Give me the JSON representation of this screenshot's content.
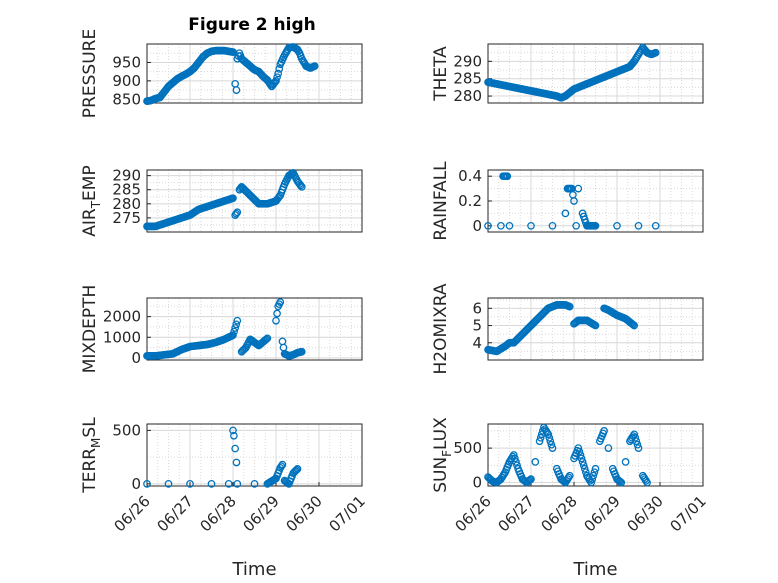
{
  "figure": {
    "title": "Figure 2 high"
  },
  "chart_data": [
    {
      "type": "scatter",
      "title": "Figure 2 high",
      "ylabel": "PRESSURE",
      "xlabel": "",
      "ylim": [
        840,
        1000
      ],
      "yticks": [
        850,
        900,
        950
      ],
      "xlim": [
        "06/26",
        "07/01"
      ],
      "grid": true,
      "series": [
        {
          "x": [
            0.0,
            0.1,
            0.2,
            0.3,
            0.4,
            0.5,
            0.6,
            0.7,
            0.8,
            0.9,
            1.0,
            1.1,
            1.2,
            1.3,
            1.4,
            1.5,
            1.6,
            1.7,
            1.8,
            1.9,
            2.0,
            2.05,
            2.08,
            2.1,
            2.15,
            2.2,
            2.3,
            2.4,
            2.5,
            2.6,
            2.7,
            2.8,
            2.9,
            3.0,
            3.05,
            3.1,
            3.2,
            3.3,
            3.4,
            3.5,
            3.55,
            3.6,
            3.7,
            3.8,
            3.9
          ],
          "y": [
            845,
            847,
            852,
            855,
            870,
            885,
            895,
            905,
            912,
            918,
            925,
            935,
            950,
            965,
            975,
            980,
            982,
            982,
            982,
            980,
            978,
            892,
            875,
            960,
            975,
            960,
            950,
            940,
            930,
            925,
            912,
            902,
            885,
            900,
            920,
            945,
            970,
            990,
            992,
            985,
            975,
            960,
            940,
            935,
            940
          ]
        }
      ]
    },
    {
      "type": "scatter",
      "ylabel": "THETA",
      "xlabel": "",
      "ylim": [
        278,
        295
      ],
      "yticks": [
        280,
        285,
        290
      ],
      "xlim": [
        "06/26",
        "07/01"
      ],
      "grid": true,
      "series": [
        {
          "x": [
            0.0,
            0.2,
            0.4,
            0.6,
            0.8,
            1.0,
            1.2,
            1.4,
            1.6,
            1.7,
            1.8,
            2.0,
            2.2,
            2.4,
            2.6,
            2.8,
            3.0,
            3.1,
            3.2,
            3.3,
            3.4,
            3.5,
            3.6,
            3.7,
            3.8,
            3.9
          ],
          "y": [
            284,
            283.5,
            283,
            282.5,
            282,
            281.5,
            281,
            280.5,
            280,
            279.5,
            280,
            282,
            283,
            284,
            285,
            286,
            287,
            287.5,
            288,
            288.5,
            290,
            292,
            294,
            292.5,
            292,
            292.5
          ]
        }
      ]
    },
    {
      "type": "scatter",
      "ylabel": "AIR_TEMP",
      "xlabel": "",
      "ylim": [
        270,
        292
      ],
      "yticks": [
        275,
        280,
        285,
        290
      ],
      "xlim": [
        "06/26",
        "07/01"
      ],
      "grid": true,
      "series": [
        {
          "x": [
            0.0,
            0.2,
            0.4,
            0.6,
            0.8,
            1.0,
            1.2,
            1.4,
            1.6,
            1.8,
            2.0,
            2.05,
            2.1,
            2.15,
            2.2,
            2.4,
            2.6,
            2.8,
            3.0,
            3.1,
            3.2,
            3.3,
            3.4,
            3.5,
            3.6
          ],
          "y": [
            272,
            272,
            273,
            274,
            275,
            276,
            278,
            279,
            280,
            281,
            282,
            276,
            277,
            285,
            286,
            283,
            280,
            280,
            281,
            283,
            287,
            290,
            291,
            288,
            286
          ]
        }
      ]
    },
    {
      "type": "scatter",
      "ylabel": "RAINFALL",
      "xlabel": "",
      "ylim": [
        -0.05,
        0.45
      ],
      "yticks": [
        0,
        0.2,
        0.4
      ],
      "ytick_labels": [
        "0",
        "0.2",
        "0.4"
      ],
      "xlim": [
        "06/26",
        "07/01"
      ],
      "grid": true,
      "series": [
        {
          "x": [
            0.0,
            0.3,
            0.35,
            0.4,
            0.45,
            0.5,
            1.0,
            1.5,
            1.8,
            1.85,
            1.9,
            1.95,
            2.0,
            2.05,
            2.1,
            2.2,
            2.3,
            2.5,
            3.0,
            3.5,
            3.9
          ],
          "y": [
            0,
            0,
            0.4,
            0.4,
            0.4,
            0,
            0,
            0,
            0.1,
            0.3,
            0.3,
            0.3,
            0.2,
            0,
            0.3,
            0.1,
            0,
            0,
            0,
            0,
            0
          ]
        }
      ]
    },
    {
      "type": "scatter",
      "ylabel": "MIXDEPTH",
      "xlabel": "",
      "ylim": [
        -100,
        2900
      ],
      "yticks": [
        0,
        1000,
        2000
      ],
      "xlim": [
        "06/26",
        "07/01"
      ],
      "grid": true,
      "series": [
        {
          "x": [
            0.0,
            0.2,
            0.4,
            0.6,
            0.8,
            1.0,
            1.2,
            1.4,
            1.6,
            1.8,
            2.0,
            2.1,
            2.2,
            2.3,
            2.4,
            2.6,
            2.8,
            3.0,
            3.05,
            3.1,
            3.15,
            3.2,
            3.3,
            3.4,
            3.5,
            3.6
          ],
          "y": [
            100,
            100,
            150,
            200,
            400,
            550,
            600,
            650,
            750,
            900,
            1100,
            1800,
            300,
            500,
            900,
            600,
            950,
            1800,
            2500,
            2700,
            800,
            200,
            100,
            150,
            250,
            300
          ]
        }
      ]
    },
    {
      "type": "scatter",
      "ylabel": "H2OMIXRA",
      "xlabel": "",
      "ylim": [
        3.0,
        6.6
      ],
      "yticks": [
        4,
        5,
        6
      ],
      "xlim": [
        "06/26",
        "07/01"
      ],
      "grid": true,
      "series": [
        {
          "x": [
            0.0,
            0.2,
            0.4,
            0.5,
            0.6,
            0.8,
            1.0,
            1.2,
            1.4,
            1.6,
            1.8,
            1.9,
            2.0,
            2.1,
            2.3,
            2.5,
            2.7,
            2.8,
            3.0,
            3.2,
            3.4
          ],
          "y": [
            3.6,
            3.5,
            3.8,
            4.0,
            4.0,
            4.5,
            5.0,
            5.5,
            6.0,
            6.2,
            6.2,
            6.1,
            5.1,
            5.3,
            5.3,
            5.0,
            6.0,
            5.9,
            5.6,
            5.4,
            5.0
          ]
        }
      ]
    },
    {
      "type": "scatter",
      "ylabel": "TERR_MSL",
      "xlabel": "Time",
      "ylim": [
        -20,
        560
      ],
      "yticks": [
        0,
        500
      ],
      "xlim": [
        "06/26",
        "07/01"
      ],
      "xticks": [
        "06/26",
        "06/27",
        "06/28",
        "06/29",
        "06/30",
        "07/01"
      ],
      "grid": true,
      "series": [
        {
          "x": [
            0.0,
            0.5,
            1.0,
            1.5,
            1.9,
            2.0,
            2.02,
            2.05,
            2.08,
            2.1,
            2.5,
            2.8,
            3.0,
            3.1,
            3.15,
            3.2,
            3.3,
            3.4,
            3.5
          ],
          "y": [
            0,
            0,
            0,
            0,
            0,
            500,
            450,
            330,
            200,
            0,
            0,
            0,
            50,
            150,
            180,
            30,
            0,
            100,
            140
          ]
        }
      ]
    },
    {
      "type": "scatter",
      "ylabel": "SUN_FLUX",
      "xlabel": "Time",
      "ylim": [
        -50,
        850
      ],
      "yticks": [
        0,
        500
      ],
      "xlim": [
        "06/26",
        "07/01"
      ],
      "xticks": [
        "06/26",
        "06/27",
        "06/28",
        "06/29",
        "06/30",
        "07/01"
      ],
      "grid": true,
      "series": [
        {
          "x": [
            0.0,
            0.1,
            0.2,
            0.3,
            0.4,
            0.5,
            0.6,
            0.7,
            0.8,
            0.9,
            1.0,
            1.1,
            1.2,
            1.3,
            1.4,
            1.5,
            1.6,
            1.7,
            1.8,
            1.9,
            2.0,
            2.1,
            2.2,
            2.3,
            2.4,
            2.5,
            2.6,
            2.7,
            2.8,
            2.9,
            3.0,
            3.1,
            3.2,
            3.3,
            3.4,
            3.5,
            3.6,
            3.7
          ],
          "y": [
            80,
            20,
            0,
            50,
            150,
            300,
            400,
            200,
            50,
            0,
            50,
            300,
            600,
            800,
            700,
            500,
            200,
            50,
            0,
            100,
            350,
            500,
            300,
            100,
            0,
            200,
            600,
            750,
            500,
            200,
            50,
            0,
            300,
            600,
            700,
            500,
            100,
            0
          ]
        }
      ]
    }
  ]
}
